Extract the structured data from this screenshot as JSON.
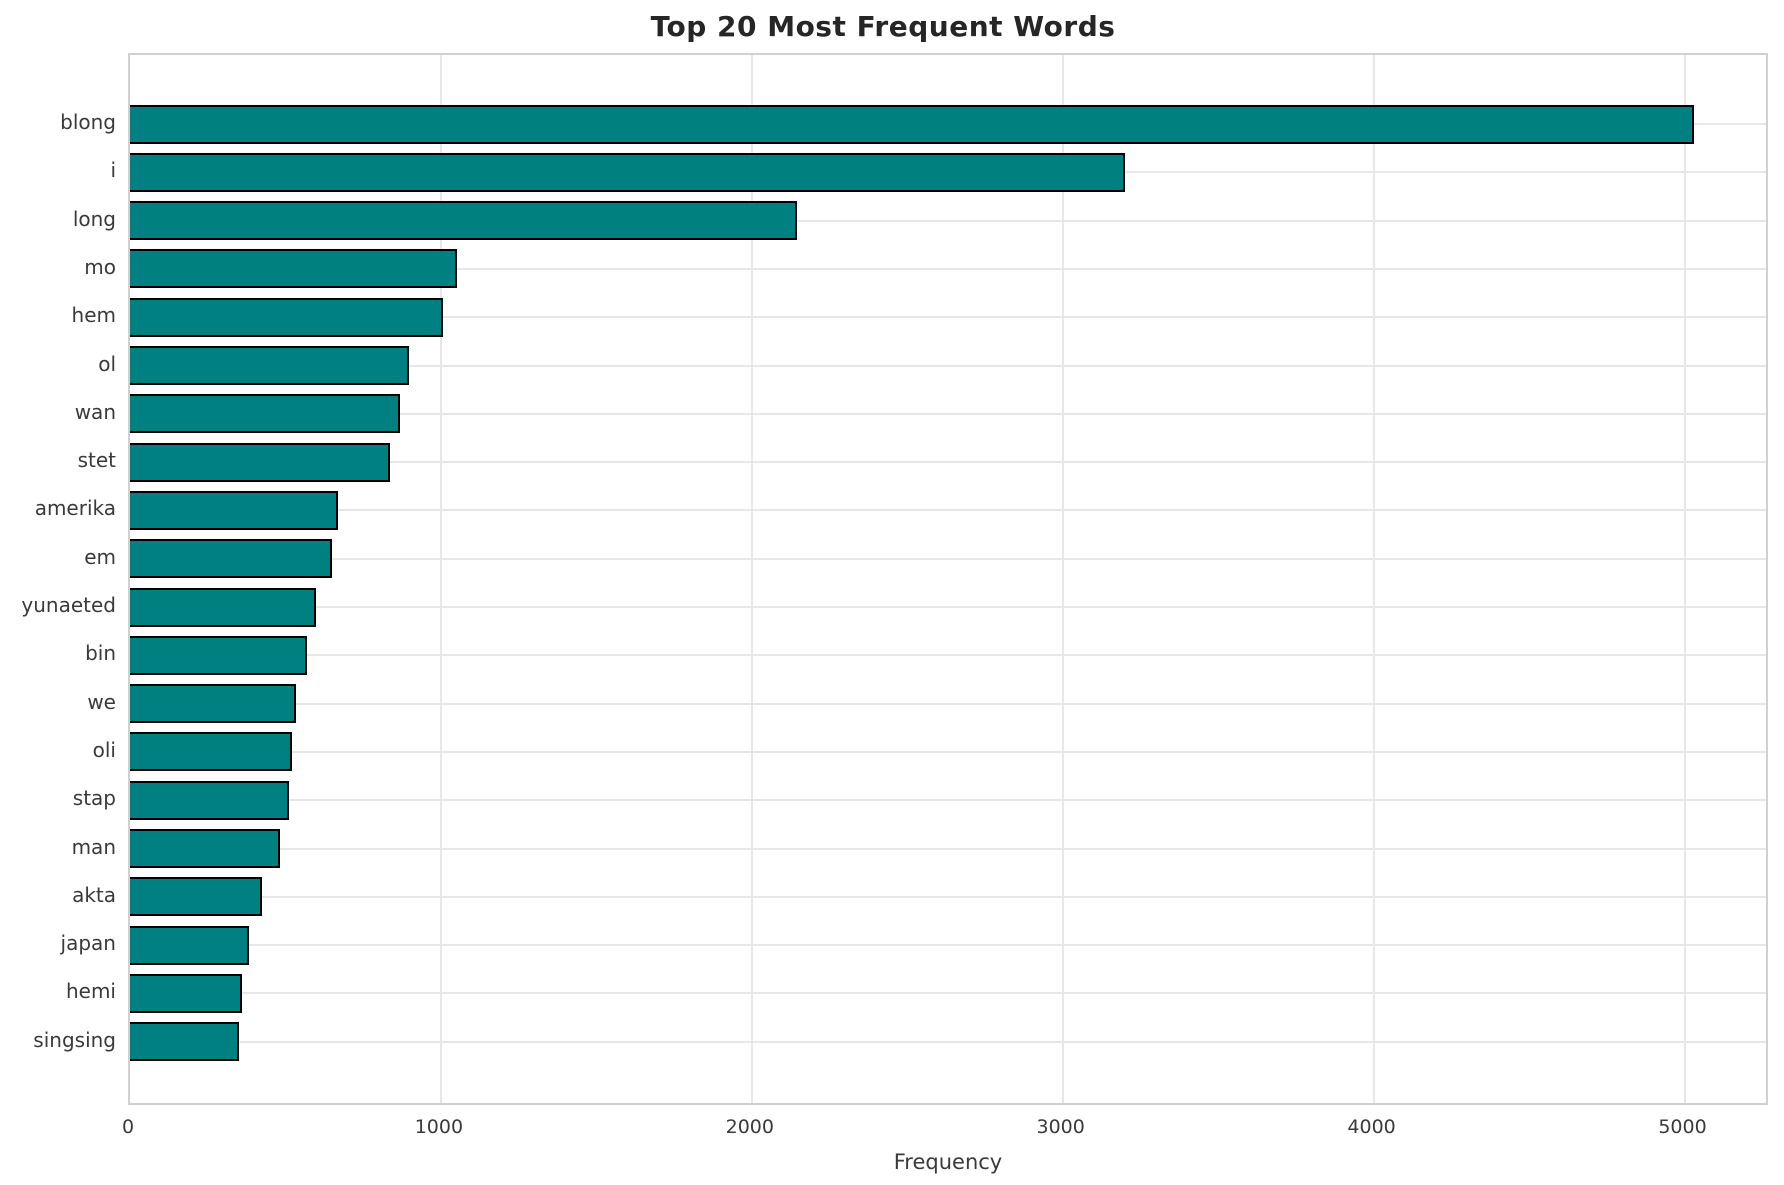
{
  "title": "Top 20 Most Frequent Words",
  "chart_data": {
    "type": "bar",
    "orientation": "horizontal",
    "title": "Top 20 Most Frequent Words",
    "xlabel": "Frequency",
    "ylabel": "",
    "categories": [
      "blong",
      "i",
      "long",
      "mo",
      "hem",
      "ol",
      "wan",
      "stet",
      "amerika",
      "em",
      "yunaeted",
      "bin",
      "we",
      "oli",
      "stap",
      "man",
      "akta",
      "japan",
      "hemi",
      "singsing"
    ],
    "values": [
      5030,
      3200,
      2145,
      1052,
      1007,
      896,
      870,
      837,
      668,
      650,
      598,
      569,
      534,
      521,
      510,
      483,
      424,
      384,
      360,
      352
    ],
    "xlim": [
      0,
      5275
    ],
    "xticks": [
      0,
      1000,
      2000,
      3000,
      4000,
      5000
    ],
    "grid": true,
    "legend_position": "none",
    "bar_color": "#008080",
    "bar_edge_color": "#000000",
    "grid_color": "#e7e7e7",
    "text_color": "#3a3a3a",
    "title_color": "#262626"
  }
}
